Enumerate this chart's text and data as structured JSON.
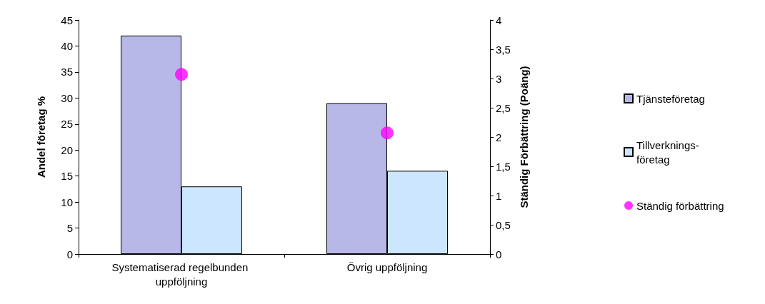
{
  "chart_data": {
    "type": "bar",
    "categories": [
      "Systematiserad regelbunden uppföljning",
      "Övrig uppföljning"
    ],
    "series": [
      {
        "name": "Tjänsteföretag",
        "color": "#b8b8e8",
        "values": [
          42,
          29
        ]
      },
      {
        "name": "Tillverknings-företag",
        "color": "#cce6ff",
        "values": [
          13,
          16
        ]
      },
      {
        "name": "Ständig förbättring",
        "type": "scatter",
        "axis": "y2",
        "color": "#ff00ff",
        "x": [
          "Systematiserad regelbunden uppföljning",
          "Övrig uppföljning"
        ],
        "values": [
          3.07,
          2.07
        ]
      }
    ],
    "ylabel": "Andel företag %",
    "y2label": "Ständig Förbättring (Poäng)",
    "ylim": [
      0,
      45
    ],
    "yticks": [
      0,
      5,
      10,
      15,
      20,
      25,
      30,
      35,
      40,
      45
    ],
    "y2lim": [
      0,
      4
    ],
    "y2ticks": [
      0,
      {
        "value": 0.5,
        "label": "0,5"
      },
      1,
      {
        "value": 1.5,
        "label": "1,5"
      },
      2,
      {
        "value": 2.5,
        "label": "2,5"
      },
      3,
      {
        "value": 3.5,
        "label": "3,5"
      },
      4
    ],
    "grid": false,
    "legend": "right",
    "marker": "circle"
  }
}
